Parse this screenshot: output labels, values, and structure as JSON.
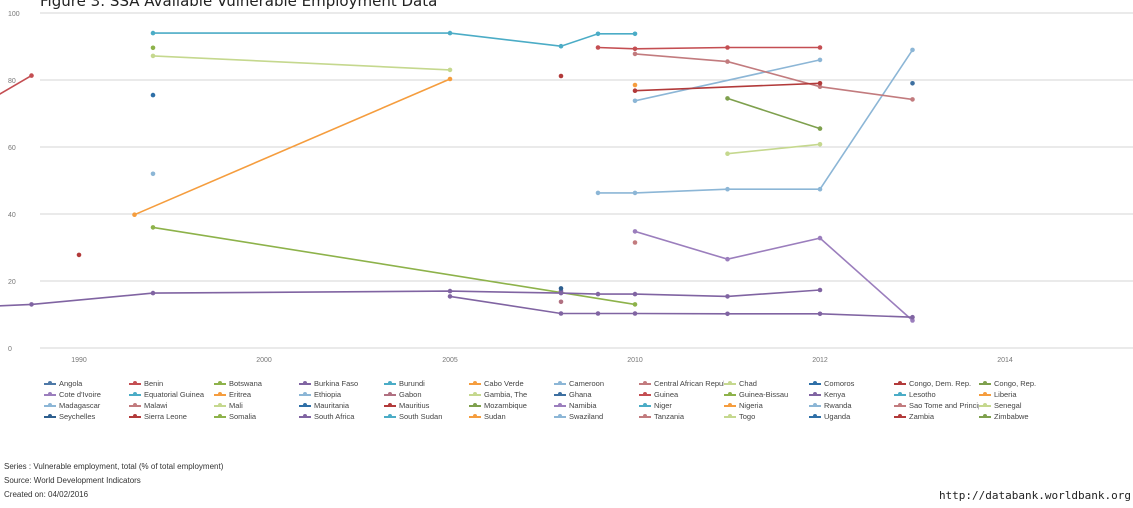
{
  "chart_data": {
    "type": "line",
    "title": "Figure 3: SSA Available Vulnerable Employment Data",
    "xlabel": "",
    "ylabel": "",
    "xlim": [
      1988,
      2016.3
    ],
    "ylim": [
      0,
      100
    ],
    "x_ticks": [
      1990,
      2000,
      2005,
      2010,
      2012,
      2014
    ],
    "x_tick_labels": [
      "1990",
      "2000",
      "2005",
      "2010",
      "2012",
      "2014"
    ],
    "y_ticks": [
      0,
      20,
      40,
      60,
      80,
      100
    ],
    "grid": true,
    "legend_position": "bottom",
    "series": [
      {
        "name": "Angola",
        "color": "#4e79a7",
        "points": []
      },
      {
        "name": "Benin",
        "color": "#c44e52",
        "points": [
          [
            1988.5,
            64.8
          ],
          [
            1989.5,
            81.3
          ]
        ]
      },
      {
        "name": "Botswana",
        "color": "#8db24a",
        "points": [
          [
            1994,
            89.6
          ]
        ]
      },
      {
        "name": "Burkina Faso",
        "color": "#8064a2",
        "points": [
          [
            2008,
            17.0
          ]
        ]
      },
      {
        "name": "Burundi",
        "color": "#4bacc6",
        "points": [
          [
            1994,
            94.0
          ],
          [
            2005,
            94.0
          ],
          [
            2008,
            90.1
          ],
          [
            2009,
            93.8
          ],
          [
            2010,
            93.8
          ]
        ]
      },
      {
        "name": "Cabo Verde",
        "color": "#f59d3e",
        "points": [
          [
            1993,
            39.8
          ],
          [
            2005,
            80.3
          ]
        ]
      },
      {
        "name": "Cameroon",
        "color": "#8cb6d6",
        "points": [
          [
            2010,
            73.8
          ],
          [
            2012,
            86.0
          ]
        ]
      },
      {
        "name": "Central African Republic",
        "color": "#c27b7e",
        "points": [
          [
            2010,
            31.5
          ]
        ]
      },
      {
        "name": "Chad",
        "color": "#c5d88e",
        "points": [
          [
            1994,
            87.2
          ],
          [
            2005,
            83.0
          ]
        ]
      },
      {
        "name": "Comoros",
        "color": "#2e6fa7",
        "points": [
          [
            1994,
            75.5
          ]
        ]
      },
      {
        "name": "Congo, Dem. Rep.",
        "color": "#b23a3a",
        "points": [
          [
            2008,
            81.2
          ]
        ]
      },
      {
        "name": "Congo, Rep.",
        "color": "#7ea04d",
        "points": [
          [
            2011,
            74.5
          ],
          [
            2012,
            65.5
          ]
        ]
      },
      {
        "name": "Cote d'Ivoire",
        "color": "#9b7ebd",
        "points": [
          [
            2010,
            34.8
          ],
          [
            2011,
            26.5
          ],
          [
            2012,
            32.8
          ],
          [
            2013,
            8.2
          ]
        ]
      },
      {
        "name": "Equatorial Guinea",
        "color": "#4bacc6",
        "points": []
      },
      {
        "name": "Eritrea",
        "color": "#f59d3e",
        "points": []
      },
      {
        "name": "Ethiopia",
        "color": "#8cb6d6",
        "points": [
          [
            1994,
            52.0
          ]
        ]
      },
      {
        "name": "Gabon",
        "color": "#b07081",
        "points": [
          [
            2008,
            13.8
          ]
        ]
      },
      {
        "name": "Gambia, The",
        "color": "#c5d88e",
        "points": [
          [
            2011,
            58.0
          ],
          [
            2012,
            60.8
          ]
        ]
      },
      {
        "name": "Ghana",
        "color": "#3d6fa0",
        "points": [
          [
            2013,
            79.0
          ]
        ]
      },
      {
        "name": "Guinea",
        "color": "#c44e52",
        "points": [
          [
            2009,
            89.7
          ],
          [
            2010,
            89.3
          ],
          [
            2011,
            89.7
          ],
          [
            2012,
            89.7
          ]
        ]
      },
      {
        "name": "Guinea-Bissau",
        "color": "#8db24a",
        "points": [
          [
            1994,
            36.0
          ],
          [
            2010,
            13.0
          ]
        ]
      },
      {
        "name": "Kenya",
        "color": "#8064a2",
        "points": [
          [
            2005,
            15.4
          ],
          [
            2008,
            10.3
          ],
          [
            2009,
            10.3
          ],
          [
            2010,
            10.3
          ],
          [
            2011,
            10.2
          ],
          [
            2012,
            10.2
          ],
          [
            2013,
            9.2
          ]
        ]
      },
      {
        "name": "Lesotho",
        "color": "#4bacc6",
        "points": []
      },
      {
        "name": "Liberia",
        "color": "#f59d3e",
        "points": [
          [
            2010,
            78.5
          ]
        ]
      },
      {
        "name": "Madagascar",
        "color": "#8cb6d6",
        "points": [
          [
            2009,
            46.3
          ],
          [
            2010,
            46.3
          ],
          [
            2011,
            47.4
          ],
          [
            2012,
            47.4
          ],
          [
            2013,
            89.0
          ]
        ]
      },
      {
        "name": "Malawi",
        "color": "#c27b7e",
        "points": [
          [
            2010,
            87.8
          ],
          [
            2011,
            85.5
          ],
          [
            2012,
            78.0
          ],
          [
            2013,
            74.2
          ]
        ]
      },
      {
        "name": "Mali",
        "color": "#c5d88e",
        "points": []
      },
      {
        "name": "Mauritania",
        "color": "#2e6fa7",
        "points": []
      },
      {
        "name": "Mauritius",
        "color": "#b23a3a",
        "points": [
          [
            2010,
            76.8
          ],
          [
            2012,
            79.0
          ]
        ]
      },
      {
        "name": "Mozambique",
        "color": "#7ea04d",
        "points": []
      },
      {
        "name": "Namibia",
        "color": "#9b7ebd",
        "points": []
      },
      {
        "name": "Niger",
        "color": "#4bacc6",
        "points": []
      },
      {
        "name": "Nigeria",
        "color": "#f59d3e",
        "points": []
      },
      {
        "name": "Rwanda",
        "color": "#8cb6d6",
        "points": []
      },
      {
        "name": "Sao Tome and Principe",
        "color": "#c27b7e",
        "points": []
      },
      {
        "name": "Senegal",
        "color": "#c5d88e",
        "points": []
      },
      {
        "name": "Seychelles",
        "color": "#2e5f8f",
        "points": [
          [
            2008,
            17.8
          ]
        ]
      },
      {
        "name": "Sierra Leone",
        "color": "#b23a3a",
        "points": [
          [
            1990,
            27.8
          ]
        ]
      },
      {
        "name": "Somalia",
        "color": "#8db24a",
        "points": []
      },
      {
        "name": "South Africa",
        "color": "#8064a2",
        "points": [
          [
            1988.5,
            11.7
          ],
          [
            1989.5,
            13.0
          ],
          [
            1994,
            16.4
          ],
          [
            2005,
            17.0
          ],
          [
            2008,
            16.4
          ],
          [
            2009,
            16.1
          ],
          [
            2010,
            16.1
          ],
          [
            2011,
            15.4
          ],
          [
            2012,
            17.3
          ]
        ]
      },
      {
        "name": "South Sudan",
        "color": "#4bacc6",
        "points": []
      },
      {
        "name": "Sudan",
        "color": "#f59d3e",
        "points": []
      },
      {
        "name": "Swaziland",
        "color": "#8cb6d6",
        "points": []
      },
      {
        "name": "Tanzania",
        "color": "#c27b7e",
        "points": []
      },
      {
        "name": "Togo",
        "color": "#c5d88e",
        "points": []
      },
      {
        "name": "Uganda",
        "color": "#2e6fa7",
        "points": []
      },
      {
        "name": "Zambia",
        "color": "#b23a3a",
        "points": []
      },
      {
        "name": "Zimbabwe",
        "color": "#7ea04d",
        "points": []
      }
    ]
  },
  "footer": {
    "series": "Series : Vulnerable employment, total (% of total employment)",
    "source": "Source: World Development Indicators",
    "created": "Created on: 04/02/2016",
    "url": "http://databank.worldbank.org"
  }
}
